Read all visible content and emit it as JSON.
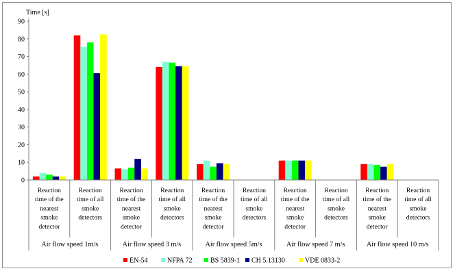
{
  "chart_data": {
    "type": "bar",
    "ylabel": "Time [s]",
    "ylim": [
      0,
      90
    ],
    "yticks": [
      0,
      10,
      20,
      30,
      40,
      50,
      60,
      70,
      80,
      90
    ],
    "grid": false,
    "legend_position": "bottom",
    "categories": [
      {
        "label": [
          "Reaction",
          "time of the",
          "nearest",
          "smoke",
          "detector"
        ]
      },
      {
        "label": [
          "Reaction",
          "time of all",
          "smoke",
          "detectors"
        ]
      },
      {
        "label": [
          "Reaction",
          "time of the",
          "nearest",
          "smoke",
          "detector"
        ]
      },
      {
        "label": [
          "Reaction",
          "time of all",
          "smoke",
          "detectors"
        ]
      },
      {
        "label": [
          "Reaction",
          "time of the",
          "nearest",
          "smoke",
          "detector"
        ]
      },
      {
        "label": [
          "Reaction",
          "time of all",
          "smoke",
          "detectors"
        ]
      },
      {
        "label": [
          "Reaction",
          "time of the",
          "nearest",
          "smoke",
          "detector"
        ]
      },
      {
        "label": [
          "Reaction",
          "time of all",
          "smoke",
          "detectors"
        ]
      },
      {
        "label": [
          "Reaction",
          "time of the",
          "nearest",
          "smoke",
          "detector"
        ]
      },
      {
        "label": [
          "Reaction",
          "time of all",
          "smoke",
          "detectors"
        ]
      }
    ],
    "groups": [
      "Air flow speed 1m/s",
      "Air flow speed 3 m/s",
      "Air flow speed 5m/s",
      "Air flow speed 7 m/s",
      "Air flow speed 10 m/s"
    ],
    "series": [
      {
        "name": "EN-54",
        "color": "#ff0000",
        "values": [
          2,
          82,
          6.5,
          64,
          9,
          null,
          11,
          null,
          9,
          null
        ]
      },
      {
        "name": "NFPA 72",
        "color": "#7fffd4",
        "values": [
          4,
          75.5,
          6,
          67,
          11,
          null,
          11,
          null,
          9,
          null
        ]
      },
      {
        "name": "BS 5839-1",
        "color": "#00ff00",
        "values": [
          3,
          78,
          7,
          66.5,
          7.5,
          null,
          11,
          null,
          8.5,
          null
        ]
      },
      {
        "name": "CH 5.13130",
        "color": "#000080",
        "values": [
          2,
          60.5,
          12,
          64.5,
          9.5,
          null,
          11,
          null,
          7.5,
          null
        ]
      },
      {
        "name": "VDE 0833-2",
        "color": "#ffff00",
        "values": [
          2,
          82.5,
          6.5,
          64.5,
          9,
          null,
          11,
          null,
          9,
          null
        ]
      }
    ]
  }
}
